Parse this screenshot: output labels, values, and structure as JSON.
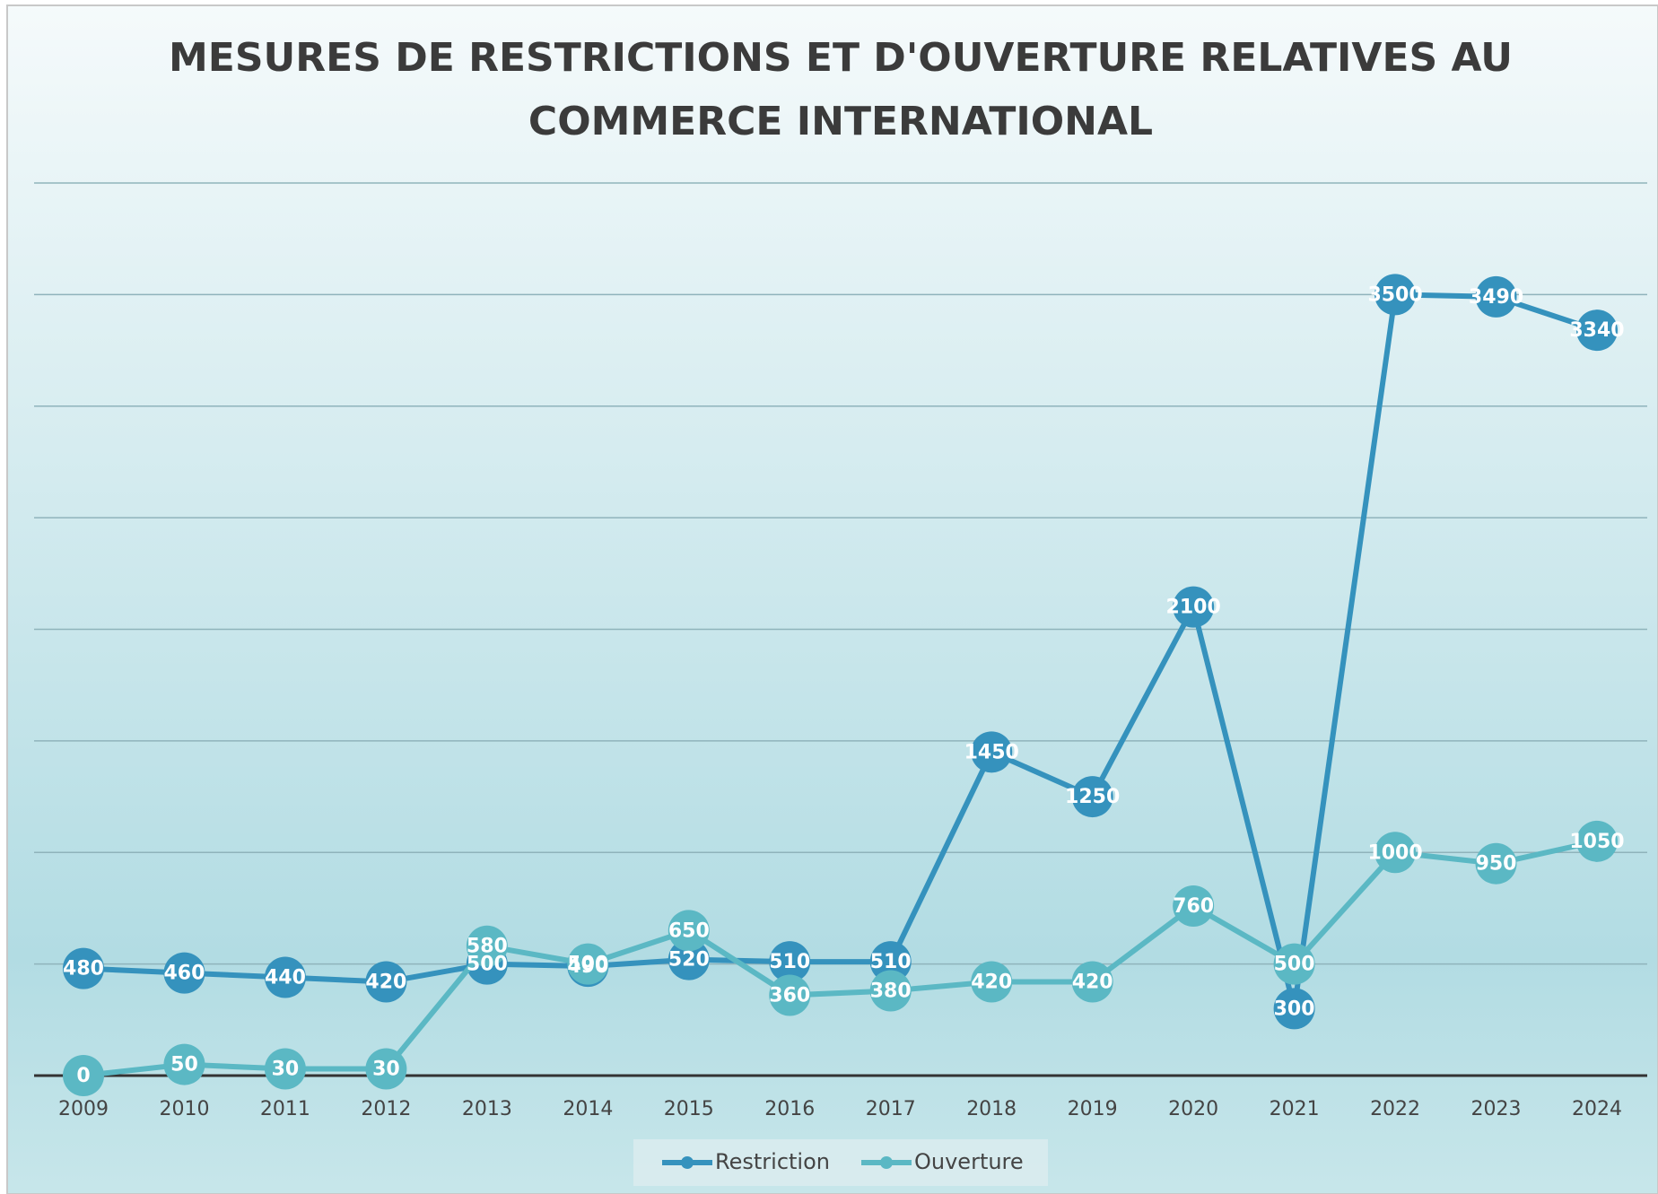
{
  "chart_data": {
    "type": "line",
    "title": "MESURES DE RESTRICTIONS ET D'OUVERTURE RELATIVES AU COMMERCE INTERNATIONAL",
    "categories": [
      "2009",
      "2010",
      "2011",
      "2012",
      "2013",
      "2014",
      "2015",
      "2016",
      "2017",
      "2018",
      "2019",
      "2020",
      "2021",
      "2022",
      "2023",
      "2024"
    ],
    "series": [
      {
        "name": "Restriction",
        "color": "#3592bd",
        "values": [
          480,
          460,
          440,
          420,
          500,
          490,
          520,
          510,
          510,
          1450,
          1250,
          2100,
          300,
          3500,
          3490,
          3340
        ]
      },
      {
        "name": "Ouverture",
        "color": "#5bb8c4",
        "values": [
          0,
          50,
          30,
          30,
          580,
          500,
          650,
          360,
          380,
          420,
          420,
          760,
          500,
          1000,
          950,
          1050
        ]
      }
    ],
    "ylim": [
      0,
      4000
    ],
    "yticks": [
      0,
      500,
      1000,
      1500,
      2000,
      2500,
      3000,
      3500,
      4000
    ],
    "grid": true,
    "legend": "bottom"
  }
}
